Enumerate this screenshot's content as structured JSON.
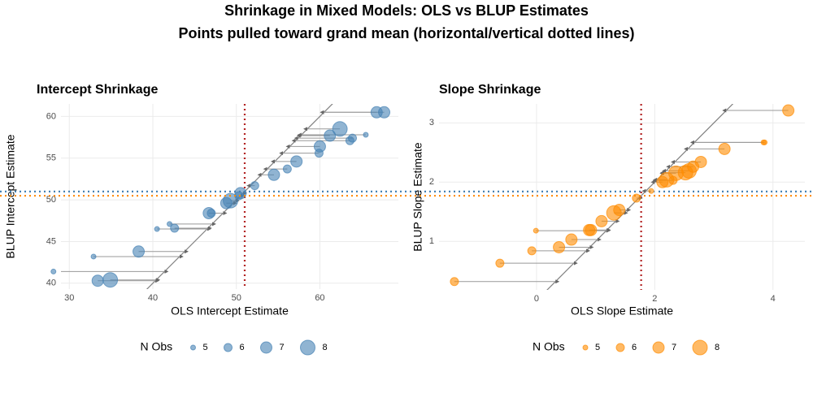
{
  "title": "Shrinkage in Mixed Models: OLS vs BLUP Estimates",
  "subtitle": "Points pulled toward grand mean (horizontal/vertical dotted lines)",
  "chart_data": [
    {
      "type": "scatter",
      "title": "Intercept Shrinkage",
      "x_label": "OLS Intercept Estimate",
      "y_label": "BLUP Intercept Estimate",
      "x": [
        28.1,
        32.9,
        33.4,
        34.9,
        38.3,
        40.5,
        42.0,
        42.6,
        46.7,
        47.0,
        48.8,
        49.3,
        50.3,
        50.5,
        52.2,
        54.5,
        56.1,
        57.2,
        59.9,
        60.0,
        61.2,
        62.4,
        63.6,
        63.9,
        65.5,
        66.8,
        67.7
      ],
      "y": [
        41.4,
        43.2,
        40.3,
        40.4,
        43.8,
        46.5,
        47.1,
        46.6,
        48.4,
        48.4,
        49.6,
        49.9,
        50.5,
        50.8,
        51.7,
        53.0,
        53.7,
        54.6,
        55.6,
        56.4,
        57.7,
        58.5,
        57.1,
        57.4,
        57.8,
        60.5,
        60.5
      ],
      "sizes": [
        5,
        5,
        7,
        8,
        7,
        5,
        5,
        6,
        7,
        6,
        7,
        8,
        6,
        7,
        6,
        7,
        6,
        7,
        6,
        7,
        7,
        8,
        6,
        6,
        5,
        7,
        7
      ],
      "color": "#4682b4",
      "mean_line_color": "#b22222",
      "grand_mean": 51.0,
      "xlim": [
        29.0,
        69.4
      ],
      "ylim": [
        39.3,
        61.5
      ],
      "xticks": [
        30,
        40,
        50,
        60
      ],
      "yticks": [
        40,
        45,
        50,
        55,
        60
      ],
      "grid": true,
      "legend": {
        "title": "N Obs",
        "values": [
          5,
          6,
          7,
          8
        ]
      }
    },
    {
      "type": "scatter",
      "title": "Slope Shrinkage",
      "x_label": "OLS Slope Estimate",
      "y_label": "BLUP Slope Estimate",
      "x": [
        -1.39,
        -0.62,
        -0.08,
        -0.01,
        0.38,
        0.59,
        0.89,
        0.92,
        1.1,
        1.31,
        1.4,
        1.69,
        1.94,
        2.13,
        2.2,
        2.31,
        2.36,
        2.52,
        2.58,
        2.65,
        2.78,
        3.18,
        3.84,
        3.86,
        4.26
      ],
      "y": [
        0.32,
        0.63,
        0.84,
        1.18,
        0.9,
        1.03,
        1.19,
        1.19,
        1.34,
        1.48,
        1.53,
        1.73,
        1.85,
        2.0,
        2.04,
        2.03,
        2.15,
        2.16,
        2.19,
        2.26,
        2.34,
        2.56,
        2.67,
        2.67,
        3.21
      ],
      "sizes": [
        6,
        6,
        6,
        5,
        7,
        7,
        7,
        7,
        7,
        8,
        7,
        6,
        5,
        7,
        8,
        6,
        8,
        8,
        8,
        7,
        7,
        7,
        5,
        5,
        7
      ],
      "color": "#ff8c00",
      "mean_line_color": "#b22222",
      "grand_mean": 1.77,
      "xlim": [
        -1.65,
        4.54
      ],
      "ylim": [
        0.18,
        3.32
      ],
      "xticks": [
        0,
        2,
        4
      ],
      "yticks": [
        1,
        2,
        3
      ],
      "grid": true,
      "legend": {
        "title": "N Obs",
        "values": [
          5,
          6,
          7,
          8
        ]
      }
    }
  ]
}
